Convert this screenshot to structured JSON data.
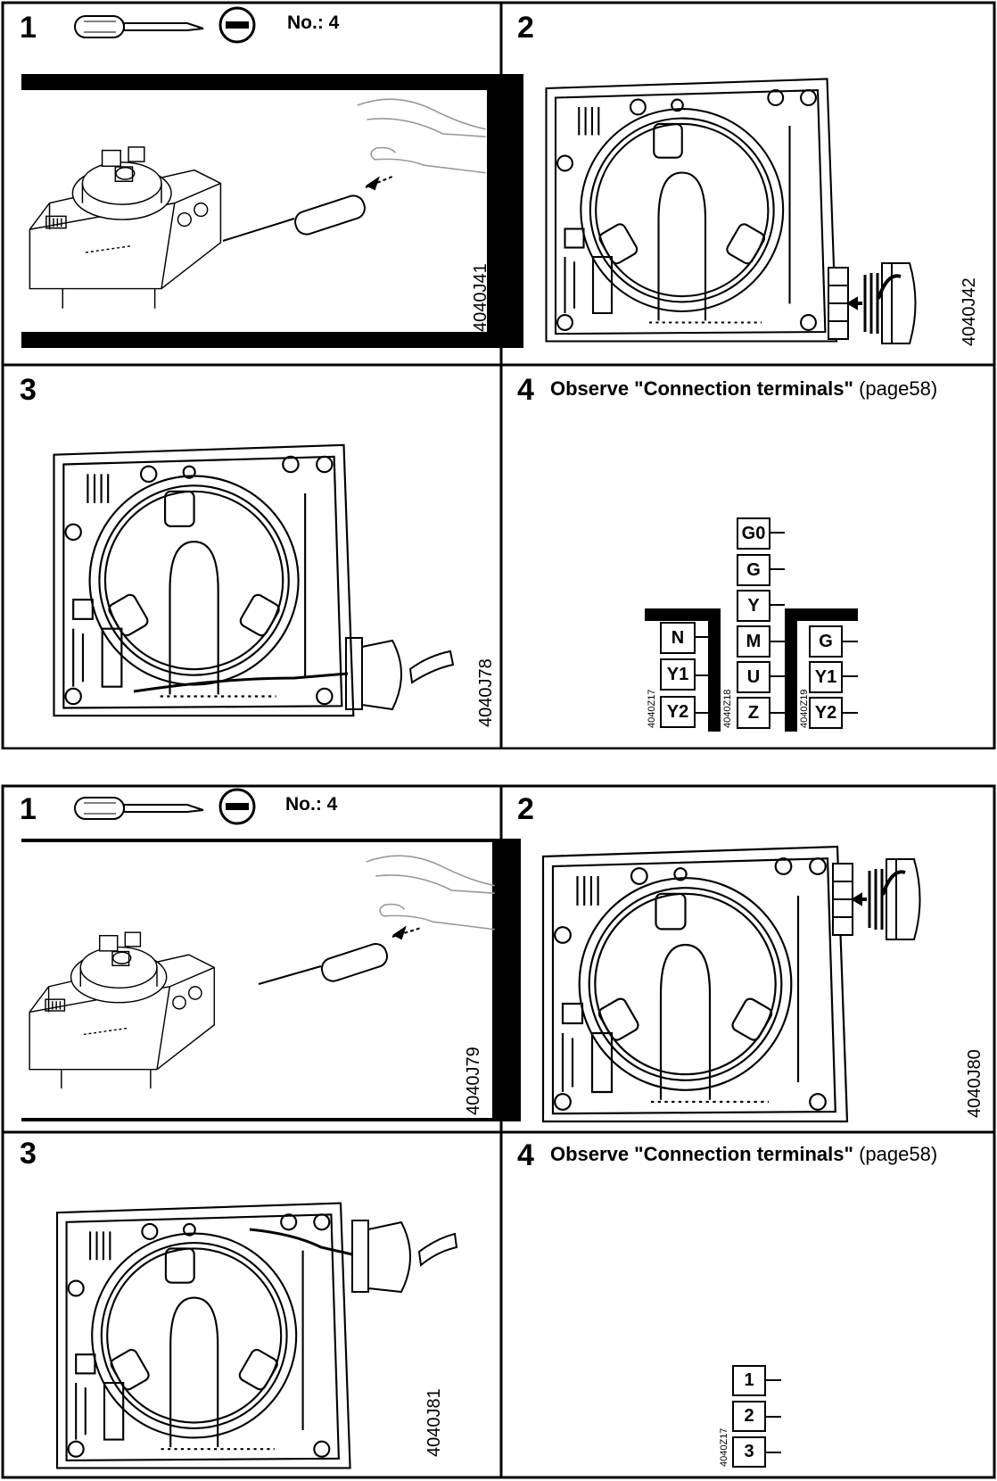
{
  "sheets": [
    {
      "step1": {
        "number": "1",
        "tool_label": "No.: 4",
        "drawing_code": "4040J41"
      },
      "step2": {
        "number": "2",
        "drawing_code": "4040J42"
      },
      "step3": {
        "number": "3",
        "drawing_code": "4040J78"
      },
      "step4": {
        "number": "4",
        "heading_bold": "Observe \"Connection terminals\"",
        "heading_ref": "(page58)",
        "groups": [
          {
            "code": "4040Z17",
            "terminals": [
              "N",
              "Y1",
              "Y2"
            ]
          },
          {
            "code": "4040Z18",
            "terminals": [
              "G0",
              "G",
              "Y",
              "M",
              "U",
              "Z"
            ]
          },
          {
            "code": "4040Z19",
            "terminals": [
              "G",
              "Y1",
              "Y2"
            ]
          }
        ]
      }
    },
    {
      "step1": {
        "number": "1",
        "tool_label": "No.: 4",
        "drawing_code": "4040J79"
      },
      "step2": {
        "number": "2",
        "drawing_code": "4040J80"
      },
      "step3": {
        "number": "3",
        "drawing_code": "4040J81"
      },
      "step4": {
        "number": "4",
        "heading_bold": "Observe \"Connection terminals\"",
        "heading_ref": "(page58)",
        "groups": [
          {
            "code": "4040Z17",
            "terminals": [
              "1",
              "2",
              "3"
            ]
          }
        ]
      }
    }
  ],
  "icons": [
    "screwdriver-icon",
    "minus-slot-icon"
  ]
}
